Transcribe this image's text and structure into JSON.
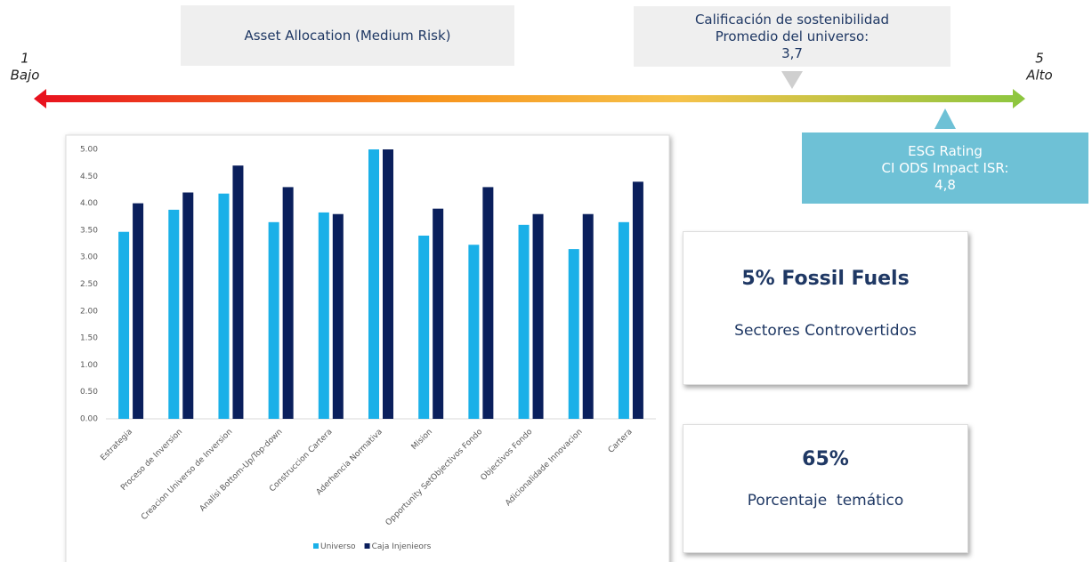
{
  "header": {
    "allocation": "Asset Allocation (Medium Risk)",
    "universe_rating": [
      "Calificación de sostenibilidad",
      "Promedio del universo:",
      "3,7"
    ],
    "fund_rating": [
      "ESG Rating",
      "CI ODS Impact ISR:",
      "4,8"
    ]
  },
  "scale": {
    "low_number": "1",
    "low_label": "Bajo",
    "high_number": "5",
    "high_label": "Alto"
  },
  "cards": [
    {
      "headline": "5% Fossil Fuels",
      "caption": "Sectores Controvertidos"
    },
    {
      "headline": "65%",
      "caption": "Porcentaje  temático"
    }
  ],
  "chart_data": {
    "type": "bar",
    "categories": [
      "Estrategia",
      "Proceso de Inversion",
      "Creacion Universo de Inversion",
      "Analisi Bottom-Up/Top-down",
      "Construccion Cartera",
      "Aderhencia Normativa",
      "Mision",
      "Opportunity SetObjectivos Fondo",
      "Objectivos Fondo",
      "Adicionalidade Innovacion",
      "Cartera"
    ],
    "series": [
      {
        "name": "Universo",
        "color": "#1ab0e8",
        "values": [
          3.47,
          3.88,
          4.18,
          3.65,
          3.83,
          5.0,
          3.4,
          3.23,
          3.6,
          3.15,
          3.65
        ]
      },
      {
        "name": "Caja Injenieors",
        "color": "#0a1f5c",
        "values": [
          4.0,
          4.2,
          4.7,
          4.3,
          3.8,
          5.0,
          3.9,
          4.3,
          3.8,
          3.8,
          4.4
        ]
      }
    ],
    "ylim": [
      0,
      5
    ],
    "yticks": [
      {
        "value": 0,
        "label": "0.00"
      },
      {
        "value": 0.5,
        "label": "0.50"
      },
      {
        "value": 1,
        "label": "1.00"
      },
      {
        "value": 1.5,
        "label": "1.50"
      },
      {
        "value": 2,
        "label": "2.00"
      },
      {
        "value": 2.5,
        "label": "2.50"
      },
      {
        "value": 3,
        "label": "3.00"
      },
      {
        "value": 3.5,
        "label": "3.50"
      },
      {
        "value": 4,
        "label": "4.00"
      },
      {
        "value": 4.5,
        "label": "4.50"
      },
      {
        "value": 5,
        "label": "5.00"
      }
    ],
    "legend": "bottom"
  }
}
